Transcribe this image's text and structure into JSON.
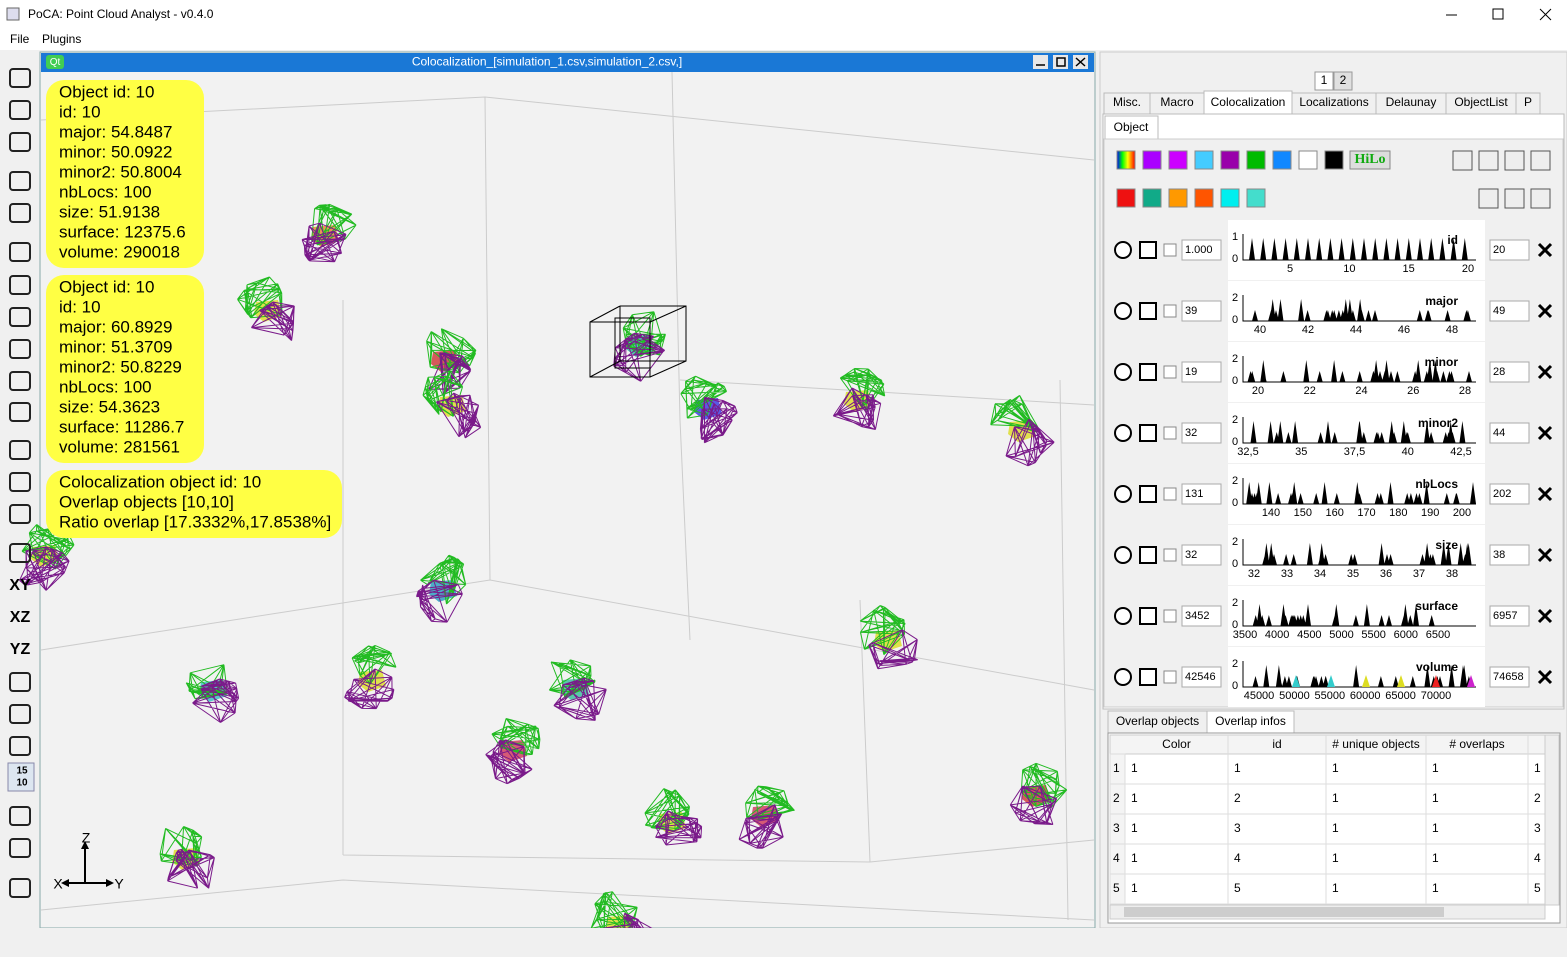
{
  "window": {
    "title": "PoCA: Point Cloud Analyst - v0.4.0"
  },
  "menu": [
    "File",
    "Plugins"
  ],
  "toolbar": [
    "XY",
    "XZ",
    "YZ",
    "15",
    "10"
  ],
  "subwindow": {
    "badge": "Qt",
    "title": "Colocalization_[simulation_1.csv,simulation_2.csv,]"
  },
  "info_boxes": [
    [
      "Object id: 10",
      "id: 10",
      "major: 54.8487",
      "minor: 50.0922",
      "minor2: 50.8004",
      "nbLocs: 100",
      "size: 51.9138",
      "surface: 12375.6",
      "volume: 290018"
    ],
    [
      "Object id: 10",
      "id: 10",
      "major: 60.8929",
      "minor: 51.3709",
      "minor2: 50.8229",
      "nbLocs: 100",
      "size: 54.3623",
      "surface: 11286.7",
      "volume: 281561"
    ],
    [
      "Colocalization object id: 10",
      "Overlap objects [10,10]",
      "Ratio overlap [17.3332%,17.8538%]"
    ]
  ],
  "axes": [
    "Z",
    "X",
    "Y"
  ],
  "panel": {
    "pages": [
      "1",
      "2"
    ],
    "tabs": [
      "Misc.",
      "Macro",
      "Colocalization",
      "Localizations",
      "Delaunay",
      "ObjectList",
      "P"
    ],
    "subtab": "Object",
    "hilo": "HiLo",
    "histograms": [
      {
        "label": "id",
        "min": "1.000",
        "max": "20",
        "ymax": "1",
        "ymin": "0",
        "ticks": [
          "5",
          "10",
          "15",
          "20"
        ]
      },
      {
        "label": "major",
        "min": "39",
        "max": "49",
        "ymax": "2",
        "ymin": "0",
        "ticks": [
          "40",
          "42",
          "44",
          "46",
          "48"
        ]
      },
      {
        "label": "minor",
        "min": "19",
        "max": "28",
        "ymax": "2",
        "ymin": "0",
        "ticks": [
          "20",
          "22",
          "24",
          "26",
          "28"
        ]
      },
      {
        "label": "minor2",
        "min": "32",
        "max": "44",
        "ymax": "2",
        "ymin": "0",
        "ticks": [
          "32,5",
          "35",
          "37,5",
          "40",
          "42,5"
        ]
      },
      {
        "label": "nbLocs",
        "min": "131",
        "max": "202",
        "ymax": "2",
        "ymin": "0",
        "ticks": [
          "140",
          "150",
          "160",
          "170",
          "180",
          "190",
          "200"
        ]
      },
      {
        "label": "size",
        "min": "32",
        "max": "38",
        "ymax": "2",
        "ymin": "0",
        "ticks": [
          "32",
          "33",
          "34",
          "35",
          "36",
          "37",
          "38"
        ]
      },
      {
        "label": "surface",
        "min": "3452",
        "max": "6957",
        "ymax": "2",
        "ymin": "0",
        "ticks": [
          "3500",
          "4000",
          "4500",
          "5000",
          "5500",
          "6000",
          "6500"
        ]
      },
      {
        "label": "volume",
        "min": "42546",
        "max": "74658",
        "ymax": "2",
        "ymin": "0",
        "ticks": [
          "45000",
          "50000",
          "55000",
          "60000",
          "65000",
          "70000"
        ]
      }
    ],
    "bottom_tabs": [
      "Overlap objects",
      "Overlap infos"
    ],
    "table": {
      "headers": [
        "Color",
        "id",
        "# unique objects",
        "# overlaps"
      ],
      "rows": [
        [
          "1",
          "1",
          "1",
          "1",
          "1",
          "1"
        ],
        [
          "2",
          "1",
          "2",
          "1",
          "1",
          "2"
        ],
        [
          "3",
          "1",
          "3",
          "1",
          "1",
          "3"
        ],
        [
          "4",
          "1",
          "4",
          "1",
          "1",
          "4"
        ],
        [
          "5",
          "1",
          "5",
          "1",
          "1",
          "5"
        ]
      ]
    }
  }
}
